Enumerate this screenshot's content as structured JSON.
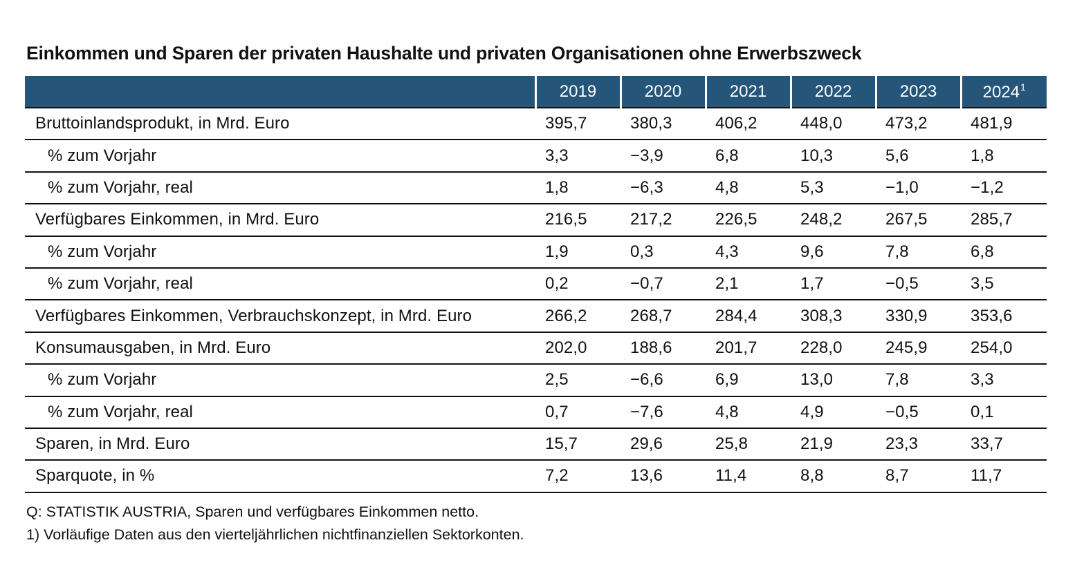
{
  "title": "Einkommen und Sparen der privaten Haushalte und privaten Organisationen ohne Erwerbszweck",
  "columns": [
    {
      "year": "2019",
      "sup": ""
    },
    {
      "year": "2020",
      "sup": ""
    },
    {
      "year": "2021",
      "sup": ""
    },
    {
      "year": "2022",
      "sup": ""
    },
    {
      "year": "2023",
      "sup": ""
    },
    {
      "year": "2024",
      "sup": "1"
    }
  ],
  "rows": [
    {
      "label": "Bruttoinlandsprodukt, in Mrd. Euro",
      "indent": false,
      "values": [
        "395,7",
        "380,3",
        "406,2",
        "448,0",
        "473,2",
        "481,9"
      ]
    },
    {
      "label": "% zum Vorjahr",
      "indent": true,
      "values": [
        "3,3",
        "−3,9",
        "6,8",
        "10,3",
        "5,6",
        "1,8"
      ]
    },
    {
      "label": "% zum Vorjahr, real",
      "indent": true,
      "values": [
        "1,8",
        "−6,3",
        "4,8",
        "5,3",
        "−1,0",
        "−1,2"
      ]
    },
    {
      "label": "Verfügbares Einkommen, in Mrd. Euro",
      "indent": false,
      "values": [
        "216,5",
        "217,2",
        "226,5",
        "248,2",
        "267,5",
        "285,7"
      ]
    },
    {
      "label": "% zum Vorjahr",
      "indent": true,
      "values": [
        "1,9",
        "0,3",
        "4,3",
        "9,6",
        "7,8",
        "6,8"
      ]
    },
    {
      "label": "% zum Vorjahr, real",
      "indent": true,
      "values": [
        "0,2",
        "−0,7",
        "2,1",
        "1,7",
        "−0,5",
        "3,5"
      ]
    },
    {
      "label": "Verfügbares Einkommen, Verbrauchskonzept, in Mrd. Euro",
      "indent": false,
      "values": [
        "266,2",
        "268,7",
        "284,4",
        "308,3",
        "330,9",
        "353,6"
      ]
    },
    {
      "label": "Konsumausgaben, in Mrd. Euro",
      "indent": false,
      "values": [
        "202,0",
        "188,6",
        "201,7",
        "228,0",
        "245,9",
        "254,0"
      ]
    },
    {
      "label": "% zum Vorjahr",
      "indent": true,
      "values": [
        "2,5",
        "−6,6",
        "6,9",
        "13,0",
        "7,8",
        "3,3"
      ]
    },
    {
      "label": "% zum Vorjahr, real",
      "indent": true,
      "values": [
        "0,7",
        "−7,6",
        "4,8",
        "4,9",
        "−0,5",
        "0,1"
      ]
    },
    {
      "label": "Sparen, in Mrd. Euro",
      "indent": false,
      "values": [
        "15,7",
        "29,6",
        "25,8",
        "21,9",
        "23,3",
        "33,7"
      ]
    },
    {
      "label": "Sparquote, in %",
      "indent": false,
      "values": [
        "7,2",
        "13,6",
        "11,4",
        "8,8",
        "8,7",
        "11,7"
      ]
    }
  ],
  "source_note": "Q: STATISTIK AUSTRIA, Sparen und verfügbares Einkommen netto.",
  "footnote": "1) Vorläufige Daten aus den vierteljährlichen nichtfinanziellen Sektorkonten.",
  "colors": {
    "header_background": "#26557a",
    "header_text": "#ffffff",
    "rule": "#111111"
  }
}
